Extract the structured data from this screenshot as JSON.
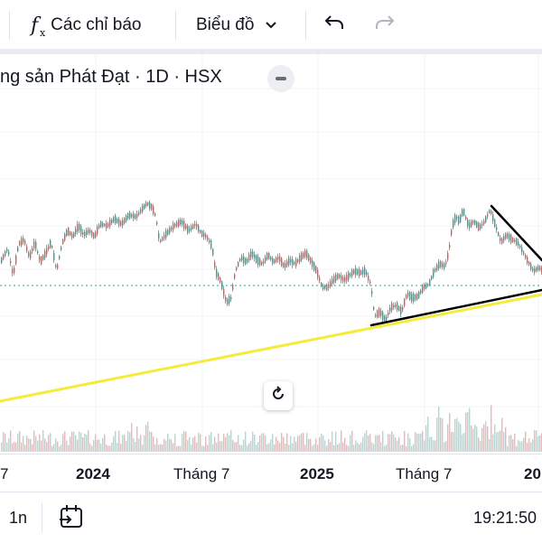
{
  "toolbar": {
    "indicators_icon": "fx-icon",
    "indicators_label": "Các chỉ báo",
    "chart_type_label": "Biểu đồ",
    "undo_icon": "undo-icon",
    "redo_icon": "redo-icon"
  },
  "legend": {
    "title": "ng sản Phát Đạt · 1D · HSX"
  },
  "time_axis": {
    "ticks": [
      "7",
      "2024",
      "Tháng 7",
      "2025",
      "Tháng 7",
      "20"
    ]
  },
  "bottom_bar": {
    "range_label": "1n",
    "clock": "19:21:50"
  },
  "colors": {
    "up": "#26a69a",
    "down": "#ef5350",
    "trendline_yellow": "#f5eb3a",
    "trendline_black": "#000000",
    "price_line": "#26a69a"
  },
  "chart_data": {
    "type": "candlestick",
    "title": "ng sản Phát Đạt · 1D · HSX",
    "x_ticks": [
      "7",
      "2024",
      "Tháng 7",
      "2025",
      "Tháng 7",
      "20"
    ],
    "price_path": [
      [
        0,
        290
      ],
      [
        8,
        275
      ],
      [
        14,
        305
      ],
      [
        20,
        270
      ],
      [
        26,
        265
      ],
      [
        32,
        285
      ],
      [
        38,
        268
      ],
      [
        44,
        290
      ],
      [
        50,
        280
      ],
      [
        56,
        268
      ],
      [
        62,
        300
      ],
      [
        68,
        270
      ],
      [
        74,
        255
      ],
      [
        80,
        262
      ],
      [
        86,
        250
      ],
      [
        92,
        260
      ],
      [
        98,
        255
      ],
      [
        104,
        262
      ],
      [
        110,
        248
      ],
      [
        118,
        250
      ],
      [
        126,
        242
      ],
      [
        134,
        248
      ],
      [
        142,
        238
      ],
      [
        150,
        240
      ],
      [
        156,
        232
      ],
      [
        162,
        225
      ],
      [
        168,
        230
      ],
      [
        172,
        240
      ],
      [
        176,
        268
      ],
      [
        184,
        258
      ],
      [
        192,
        250
      ],
      [
        200,
        245
      ],
      [
        208,
        255
      ],
      [
        216,
        248
      ],
      [
        222,
        258
      ],
      [
        228,
        262
      ],
      [
        234,
        272
      ],
      [
        238,
        300
      ],
      [
        244,
        312
      ],
      [
        250,
        335
      ],
      [
        255,
        330
      ],
      [
        260,
        300
      ],
      [
        266,
        285
      ],
      [
        272,
        290
      ],
      [
        278,
        280
      ],
      [
        284,
        288
      ],
      [
        290,
        292
      ],
      [
        296,
        282
      ],
      [
        302,
        290
      ],
      [
        308,
        285
      ],
      [
        314,
        295
      ],
      [
        320,
        288
      ],
      [
        326,
        292
      ],
      [
        332,
        285
      ],
      [
        338,
        280
      ],
      [
        344,
        290
      ],
      [
        350,
        300
      ],
      [
        356,
        318
      ],
      [
        362,
        318
      ],
      [
        368,
        310
      ],
      [
        374,
        305
      ],
      [
        380,
        310
      ],
      [
        386,
        305
      ],
      [
        392,
        300
      ],
      [
        398,
        302
      ],
      [
        404,
        300
      ],
      [
        410,
        315
      ],
      [
        414,
        350
      ],
      [
        420,
        345
      ],
      [
        426,
        355
      ],
      [
        432,
        340
      ],
      [
        438,
        338
      ],
      [
        444,
        345
      ],
      [
        450,
        325
      ],
      [
        456,
        330
      ],
      [
        462,
        328
      ],
      [
        468,
        318
      ],
      [
        474,
        315
      ],
      [
        480,
        300
      ],
      [
        486,
        292
      ],
      [
        492,
        295
      ],
      [
        496,
        280
      ],
      [
        500,
        250
      ],
      [
        504,
        240
      ],
      [
        508,
        245
      ],
      [
        512,
        232
      ],
      [
        518,
        250
      ],
      [
        524,
        245
      ],
      [
        530,
        252
      ],
      [
        536,
        245
      ],
      [
        542,
        232
      ],
      [
        548,
        250
      ],
      [
        554,
        268
      ],
      [
        560,
        260
      ],
      [
        566,
        265
      ],
      [
        572,
        268
      ],
      [
        578,
        278
      ],
      [
        584,
        290
      ],
      [
        590,
        300
      ],
      [
        596,
        296
      ],
      [
        600,
        300
      ]
    ],
    "price_line_y": 316,
    "trendlines": [
      {
        "color": "yellow",
        "from": [
          0,
          444
        ],
        "to": [
          600,
          326
        ]
      },
      {
        "color": "black",
        "from": [
          411,
          360
        ],
        "to": [
          600,
          321
        ]
      },
      {
        "color": "black",
        "from": [
          544,
          228
        ],
        "to": [
          600,
          288
        ]
      }
    ]
  }
}
